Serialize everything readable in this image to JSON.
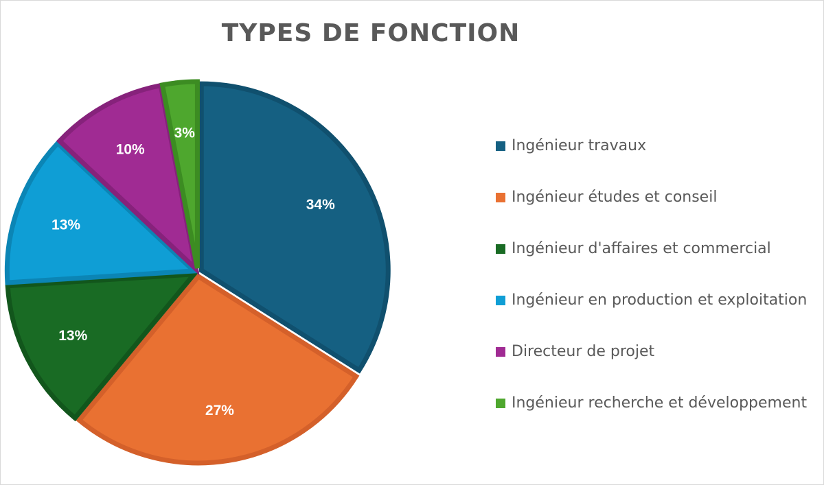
{
  "chart_data": {
    "type": "pie",
    "title": "TYPES DE FONCTION",
    "legend_position": "right",
    "categories": [
      "Ingénieur travaux",
      "Ingénieur études et conseil",
      "Ingénieur d'affaires et commercial",
      "Ingénieur en production et exploitation",
      "Directeur de projet",
      "Ingénieur recherche et développement"
    ],
    "values": [
      34,
      27,
      13,
      13,
      10,
      3
    ],
    "labels": [
      "34%",
      "27%",
      "13%",
      "13%",
      "10%",
      "3%"
    ],
    "colors": [
      "#156082",
      "#E97132",
      "#196B24",
      "#0F9ED5",
      "#A02B93",
      "#4EA72E"
    ],
    "border_colors": [
      "#10506E",
      "#D4602A",
      "#12561C",
      "#0B85B5",
      "#86227B",
      "#3C8C22"
    ]
  }
}
